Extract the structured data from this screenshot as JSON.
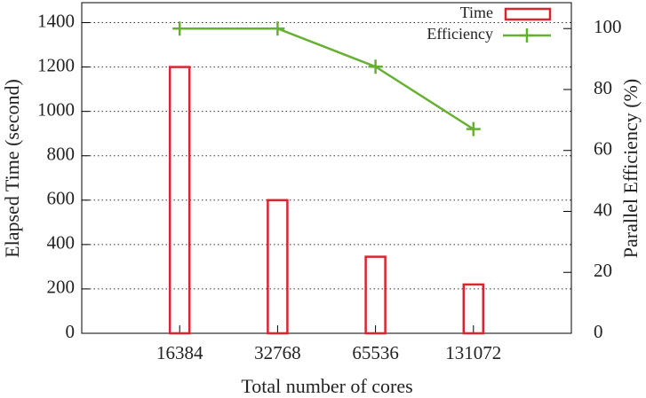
{
  "chart_data": {
    "type": "bar",
    "x_label": "Total number of cores",
    "y_label": "Elapsed Time (second)",
    "y2_label": "Parallel Efficiency (%)",
    "categories": [
      "16384",
      "32768",
      "65536",
      "131072"
    ],
    "series": [
      {
        "name": "Time",
        "type": "bar",
        "color": "#d7262f",
        "values": [
          1200,
          600,
          345,
          220
        ]
      },
      {
        "name": "Efficiency",
        "type": "line",
        "color": "#66b032",
        "axis": "y2",
        "values": [
          100,
          100,
          87.5,
          67
        ]
      }
    ],
    "ylim": [
      0,
      1490
    ],
    "yticks": [
      0,
      200,
      400,
      600,
      800,
      1000,
      1200,
      1400
    ],
    "y2lim": [
      0,
      108.5
    ],
    "y2ticks": [
      0,
      20,
      40,
      60,
      80,
      100
    ],
    "grid": true,
    "legend": "top-right"
  }
}
